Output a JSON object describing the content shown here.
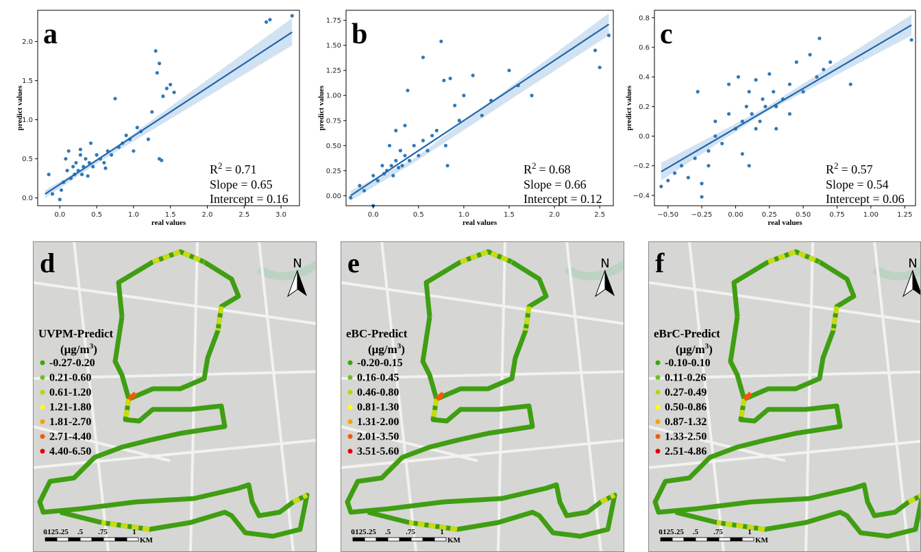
{
  "chart_data": [
    {
      "type": "scatter",
      "panel_label": "a",
      "xlabel": "real values",
      "ylabel": "predict values",
      "xlim": [
        -0.3,
        3.25
      ],
      "ylim": [
        -0.1,
        2.4
      ],
      "xticks": [
        {
          "value": 0,
          "label": "0.0"
        },
        0.5,
        {
          "value": 1,
          "label": "1.0"
        },
        1.5,
        {
          "value": 2,
          "label": "2.0"
        },
        2.5,
        {
          "value": 3,
          "label": "3.0"
        }
      ],
      "yticks": [
        {
          "value": 0,
          "label": "0.0"
        },
        0.5,
        {
          "value": 1,
          "label": "1.0"
        },
        1.5,
        {
          "value": 2,
          "label": "2.0"
        }
      ],
      "color": "#2f7ab9",
      "fit_color": "#2166ac",
      "band_color": "#c6dbef",
      "x": [
        -0.15,
        -0.1,
        0.0,
        0.05,
        0.1,
        0.12,
        0.15,
        0.18,
        0.2,
        0.22,
        0.25,
        0.28,
        0.3,
        0.32,
        0.35,
        0.38,
        0.4,
        0.45,
        0.5,
        0.55,
        0.6,
        0.65,
        0.7,
        0.75,
        0.8,
        0.85,
        0.9,
        0.95,
        1.0,
        1.05,
        1.1,
        1.2,
        1.25,
        1.3,
        1.32,
        1.35,
        1.4,
        1.45,
        1.5,
        1.55,
        1.35,
        1.38,
        2.8,
        2.85,
        3.15,
        0.02,
        0.08,
        0.28,
        0.42,
        0.62
      ],
      "values": [
        0.3,
        0.05,
        -0.02,
        0.2,
        0.35,
        0.6,
        0.25,
        0.4,
        0.3,
        0.45,
        0.35,
        0.55,
        0.3,
        0.4,
        0.5,
        0.28,
        0.45,
        0.4,
        0.55,
        0.5,
        0.45,
        0.6,
        0.55,
        1.27,
        0.65,
        0.7,
        0.8,
        0.75,
        0.6,
        0.9,
        0.85,
        0.75,
        1.1,
        1.88,
        1.6,
        1.72,
        1.3,
        1.4,
        1.45,
        1.35,
        0.5,
        0.48,
        2.25,
        2.28,
        2.33,
        0.1,
        0.5,
        0.62,
        0.7,
        0.38
      ],
      "fit": {
        "x": [
          -0.2,
          3.15
        ],
        "y": [
          0.05,
          2.12
        ]
      },
      "band": {
        "x": [
          -0.2,
          0.5,
          3.15
        ],
        "lower": [
          0.0,
          0.44,
          1.95
        ],
        "upper": [
          0.1,
          0.48,
          2.3
        ]
      },
      "stat_symbol": "R",
      "stat_sup": "2",
      "stats": [
        "= 0.71",
        "Slope = 0.65",
        "Intercept = 0.16"
      ]
    },
    {
      "type": "scatter",
      "panel_label": "b",
      "xlabel": "real values",
      "ylabel": "predict values",
      "xlim": [
        -0.3,
        2.65
      ],
      "ylim": [
        -0.1,
        1.85
      ],
      "xticks": [
        {
          "value": 0,
          "label": "0.0"
        },
        0.5,
        {
          "value": 1,
          "label": "1.0"
        },
        1.5,
        {
          "value": 2,
          "label": "2.0"
        },
        2.5
      ],
      "yticks": [
        {
          "value": 0,
          "label": "0.00"
        },
        0.25,
        {
          "value": 0.5,
          "label": "0.50"
        },
        0.75,
        {
          "value": 1,
          "label": "1.00"
        },
        1.25,
        {
          "value": 1.5,
          "label": "1.50"
        },
        1.75
      ],
      "color": "#2f7ab9",
      "fit_color": "#2166ac",
      "band_color": "#c6dbef",
      "x": [
        -0.25,
        -0.15,
        -0.1,
        0.0,
        0.05,
        0.1,
        0.12,
        0.15,
        0.18,
        0.2,
        0.22,
        0.25,
        0.28,
        0.3,
        0.32,
        0.35,
        0.38,
        0.4,
        0.45,
        0.5,
        0.55,
        0.6,
        0.65,
        0.7,
        0.75,
        0.8,
        0.85,
        0.9,
        0.95,
        1.0,
        1.1,
        1.2,
        1.3,
        1.5,
        1.6,
        1.75,
        2.45,
        2.5,
        2.6,
        0.0,
        0.25,
        0.35,
        0.55,
        0.78,
        0.82
      ],
      "values": [
        -0.02,
        0.1,
        0.05,
        0.2,
        0.15,
        0.3,
        0.22,
        0.25,
        0.5,
        0.3,
        0.2,
        0.35,
        0.28,
        0.45,
        0.3,
        0.4,
        1.05,
        0.35,
        0.5,
        0.4,
        0.55,
        0.45,
        0.6,
        0.65,
        1.54,
        0.5,
        1.17,
        0.9,
        0.75,
        1.0,
        1.2,
        0.8,
        0.95,
        1.25,
        1.1,
        1.0,
        1.45,
        1.28,
        1.6,
        -0.1,
        0.65,
        0.7,
        1.38,
        1.15,
        0.3
      ],
      "fit": {
        "x": [
          -0.25,
          2.6
        ],
        "y": [
          0.0,
          1.71
        ]
      },
      "band": {
        "x": [
          -0.25,
          0.45,
          2.6
        ],
        "lower": [
          -0.05,
          0.33,
          1.6
        ],
        "upper": [
          0.05,
          0.37,
          1.82
        ]
      },
      "stat_symbol": "R",
      "stat_sup": "2",
      "stats": [
        "= 0.68",
        "Slope = 0.66",
        "Intercept = 0.12"
      ]
    },
    {
      "type": "scatter",
      "panel_label": "c",
      "xlabel": "real values",
      "ylabel": "predict values",
      "xlim": [
        -0.6,
        1.33
      ],
      "ylim": [
        -0.47,
        0.85
      ],
      "xticks": [
        {
          "value": -0.5,
          "label": "−0.50"
        },
        {
          "value": -0.25,
          "label": "−0.25"
        },
        {
          "value": 0,
          "label": "0.00"
        },
        0.25,
        {
          "value": 0.5,
          "label": "0.50"
        },
        0.75,
        {
          "value": 1,
          "label": "1.00"
        },
        1.25
      ],
      "yticks": [
        {
          "value": -0.4,
          "label": "−0.4"
        },
        {
          "value": -0.2,
          "label": "−0.2"
        },
        {
          "value": 0,
          "label": "0.0"
        },
        0.2,
        0.4,
        0.6,
        0.8
      ],
      "color": "#2f7ab9",
      "fit_color": "#2166ac",
      "band_color": "#c6dbef",
      "x": [
        -0.55,
        -0.5,
        -0.45,
        -0.4,
        -0.35,
        -0.3,
        -0.28,
        -0.25,
        -0.2,
        -0.15,
        -0.1,
        -0.05,
        0.0,
        0.02,
        0.05,
        0.08,
        0.1,
        0.12,
        0.15,
        0.18,
        0.2,
        0.22,
        0.25,
        0.28,
        0.3,
        0.35,
        0.4,
        0.45,
        0.5,
        0.55,
        0.6,
        0.62,
        0.65,
        0.7,
        0.85,
        1.3,
        -0.25,
        -0.2,
        -0.05,
        0.1,
        0.15,
        0.3,
        0.05,
        -0.15,
        0.4
      ],
      "values": [
        -0.34,
        -0.3,
        -0.25,
        -0.2,
        -0.28,
        -0.15,
        0.3,
        -0.41,
        -0.1,
        0.0,
        -0.05,
        0.15,
        0.05,
        0.4,
        0.1,
        0.2,
        0.3,
        0.15,
        0.38,
        0.1,
        0.25,
        0.2,
        0.42,
        0.3,
        0.2,
        0.25,
        0.35,
        0.5,
        0.3,
        0.55,
        0.4,
        0.66,
        0.45,
        0.5,
        0.35,
        0.65,
        -0.32,
        -0.2,
        0.35,
        -0.2,
        0.05,
        0.05,
        -0.12,
        0.1,
        0.15
      ],
      "fit": {
        "x": [
          -0.55,
          1.3
        ],
        "y": [
          -0.24,
          0.75
        ]
      },
      "band": {
        "x": [
          -0.55,
          0.2,
          1.3
        ],
        "lower": [
          -0.3,
          0.15,
          0.68
        ],
        "upper": [
          -0.18,
          0.18,
          0.82
        ]
      },
      "stat_symbol": "R",
      "stat_sup": "2",
      "stats": [
        "= 0.57",
        "Slope = 0.54",
        "Intercept = 0.06"
      ]
    }
  ],
  "maps": [
    {
      "panel_label": "d",
      "legend_title": "UVPM-Predict",
      "unit_prefix": "(μg/m",
      "unit_sup": "3",
      "unit_suffix": ")",
      "legend": [
        {
          "label": "-0.27-0.20",
          "color": "#38a800"
        },
        {
          "label": "0.21-0.60",
          "color": "#6cc21a"
        },
        {
          "label": "0.61-1.20",
          "color": "#b5d900"
        },
        {
          "label": "1.21-1.80",
          "color": "#ffff00"
        },
        {
          "label": "1.81-2.70",
          "color": "#f5a300"
        },
        {
          "label": "2.71-4.40",
          "color": "#f55a00"
        },
        {
          "label": "4.40-6.50",
          "color": "#e60000"
        }
      ],
      "north": "N",
      "scale_labels": [
        "0",
        ".125",
        ".25",
        ".5",
        ".75",
        "1"
      ],
      "scale_unit": "KM"
    },
    {
      "panel_label": "e",
      "legend_title": "eBC-Predict",
      "unit_prefix": "(μg/m",
      "unit_sup": "3",
      "unit_suffix": ")",
      "legend": [
        {
          "label": "-0.20-0.15",
          "color": "#38a800"
        },
        {
          "label": "0.16-0.45",
          "color": "#6cc21a"
        },
        {
          "label": "0.46-0.80",
          "color": "#b5d900"
        },
        {
          "label": "0.81-1.30",
          "color": "#ffff00"
        },
        {
          "label": "1.31-2.00",
          "color": "#f5a300"
        },
        {
          "label": "2.01-3.50",
          "color": "#f55a00"
        },
        {
          "label": "3.51-5.60",
          "color": "#e60000"
        }
      ],
      "north": "N",
      "scale_labels": [
        "0",
        ".125",
        ".25",
        ".5",
        ".75",
        "1"
      ],
      "scale_unit": "KM"
    },
    {
      "panel_label": "f",
      "legend_title": "eBrC-Predict",
      "unit_prefix": "(μg/m",
      "unit_sup": "3",
      "unit_suffix": ")",
      "legend": [
        {
          "label": "-0.10-0.10",
          "color": "#38a800"
        },
        {
          "label": "0.11-0.26",
          "color": "#6cc21a"
        },
        {
          "label": "0.27-0.49",
          "color": "#b5d900"
        },
        {
          "label": "0.50-0.86",
          "color": "#ffff00"
        },
        {
          "label": "0.87-1.32",
          "color": "#f5a300"
        },
        {
          "label": "1.33-2.50",
          "color": "#f55a00"
        },
        {
          "label": "2.51-4.86",
          "color": "#e60000"
        }
      ],
      "north": "N",
      "scale_labels": [
        "0",
        ".125",
        ".25",
        ".5",
        ".75",
        "1"
      ],
      "scale_unit": "KM"
    }
  ]
}
